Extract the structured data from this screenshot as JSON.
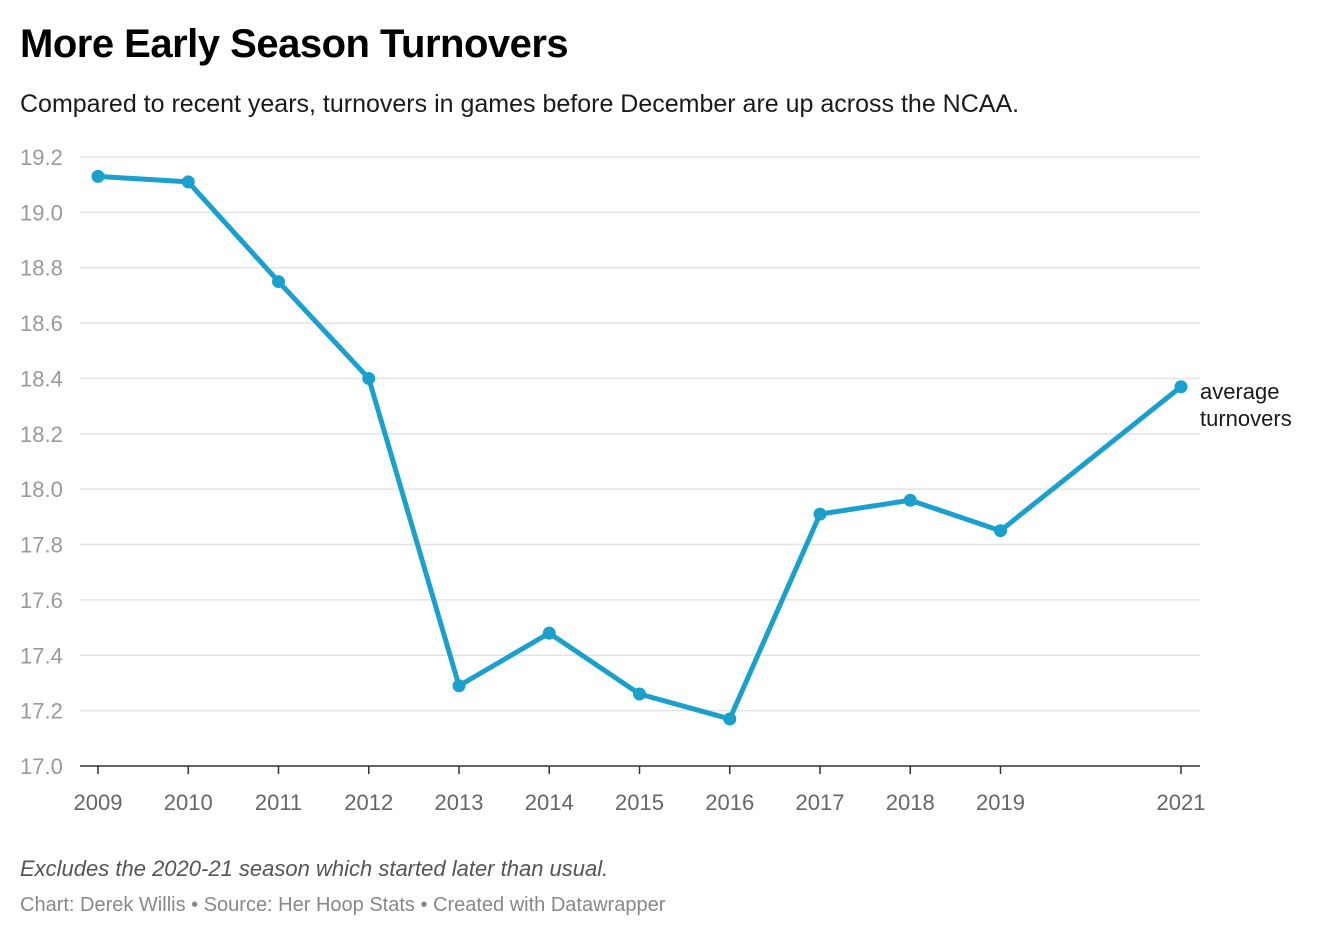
{
  "header": {
    "title": "More Early Season Turnovers",
    "subtitle": "Compared to recent years, turnovers in games before December are up across the NCAA."
  },
  "footer": {
    "note": "Excludes the 2020-21 season which started later than usual.",
    "credits": "Chart: Derek Willis • Source: Her Hoop Stats • Created with Datawrapper"
  },
  "colors": {
    "line": "#1aa0cc",
    "grid": "#e3e3e3",
    "axis": "#333333"
  },
  "chart_data": {
    "type": "line",
    "title": "More Early Season Turnovers",
    "subtitle": "Compared to recent years, turnovers in games before December are up across the NCAA.",
    "xlabel": "",
    "ylabel": "",
    "ylim": [
      17.0,
      19.2
    ],
    "yticks": [
      17.0,
      17.2,
      17.4,
      17.6,
      17.8,
      18.0,
      18.2,
      18.4,
      18.6,
      18.8,
      19.0,
      19.2
    ],
    "ytick_labels": [
      "17.0",
      "17.2",
      "17.4",
      "17.6",
      "17.8",
      "18.0",
      "18.2",
      "18.4",
      "18.6",
      "18.8",
      "19.0",
      "19.2"
    ],
    "grid": true,
    "x": [
      2009,
      2010,
      2011,
      2012,
      2013,
      2014,
      2015,
      2016,
      2017,
      2018,
      2019,
      2021
    ],
    "xtick_labels": [
      "2009",
      "2010",
      "2011",
      "2012",
      "2013",
      "2014",
      "2015",
      "2016",
      "2017",
      "2018",
      "2019",
      "2021"
    ],
    "series": [
      {
        "name": "average turnovers",
        "label_lines": [
          "average",
          "turnovers"
        ],
        "values": [
          19.13,
          19.11,
          18.75,
          18.4,
          17.29,
          17.48,
          17.26,
          17.17,
          17.91,
          17.96,
          17.85,
          18.37
        ]
      }
    ]
  }
}
